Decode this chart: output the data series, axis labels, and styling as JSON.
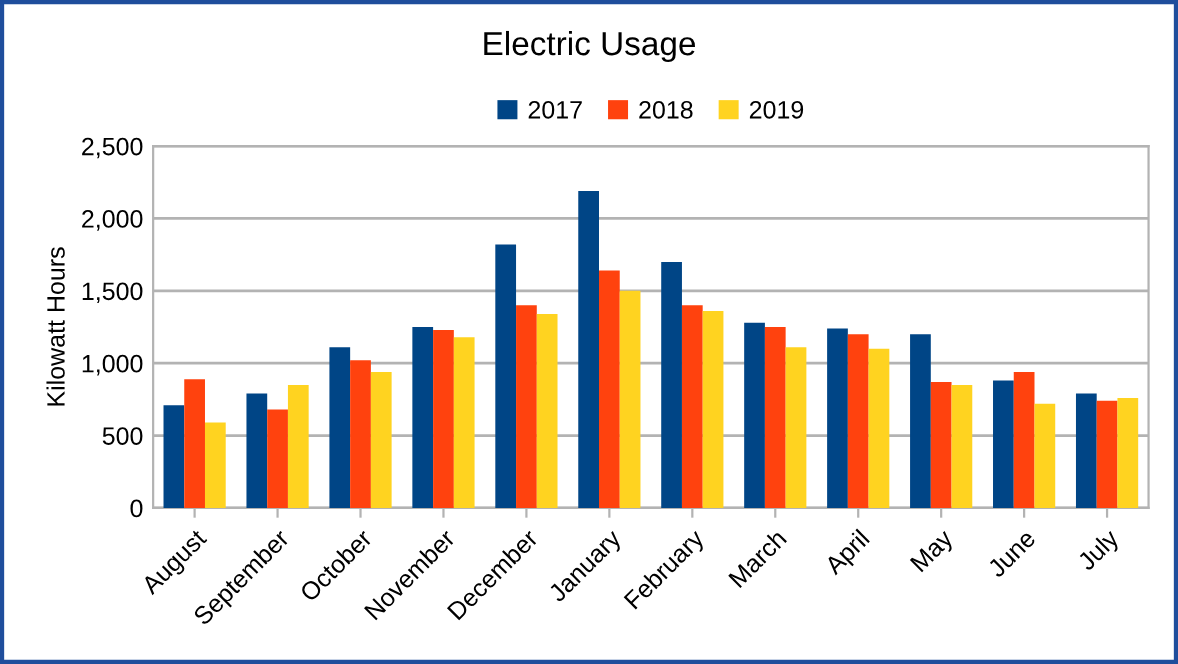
{
  "chart_data": {
    "type": "bar",
    "title": "Electric Usage",
    "ylabel": "Kilowatt Hours",
    "categories": [
      "August",
      "September",
      "October",
      "November",
      "December",
      "January",
      "February",
      "March",
      "April",
      "May",
      "June",
      "July"
    ],
    "series": [
      {
        "name": "2017",
        "color": "#004586",
        "values": [
          710,
          790,
          1110,
          1250,
          1820,
          2190,
          1700,
          1280,
          1240,
          1200,
          880,
          790
        ]
      },
      {
        "name": "2018",
        "color": "#ff420e",
        "values": [
          890,
          680,
          1020,
          1230,
          1400,
          1640,
          1400,
          1250,
          1200,
          870,
          940,
          740
        ]
      },
      {
        "name": "2019",
        "color": "#ffd320",
        "values": [
          590,
          850,
          940,
          1180,
          1340,
          1500,
          1360,
          1110,
          1100,
          850,
          720,
          760
        ]
      }
    ],
    "ylim": [
      0,
      2500
    ],
    "yticks": [
      {
        "value": 0,
        "label": "0"
      },
      {
        "value": 500,
        "label": "500"
      },
      {
        "value": 1000,
        "label": "1,000"
      },
      {
        "value": 1500,
        "label": "1,500"
      },
      {
        "value": 2000,
        "label": "2,000"
      },
      {
        "value": 2500,
        "label": "2,500"
      }
    ],
    "grid": "y",
    "legend": "top"
  }
}
